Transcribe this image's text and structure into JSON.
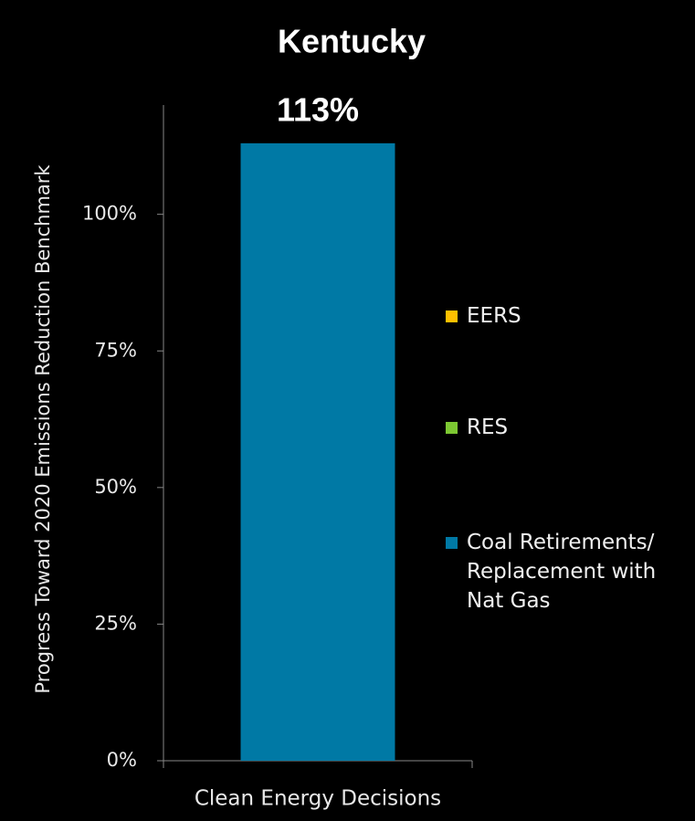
{
  "chart_data": {
    "type": "stacked_bar",
    "title": "Kentucky",
    "y_label": "Progress Toward 2020 Emissions Reduction Benchmark",
    "categories": [
      "Clean Energy Decisions"
    ],
    "series": [
      {
        "name": "Coal Retirements/ Replacement with Nat Gas",
        "color": "#0079a5",
        "values": [
          113
        ],
        "value_labels": [
          "113%"
        ]
      },
      {
        "name": "RES",
        "color": "#7dc832",
        "values": [
          0
        ]
      },
      {
        "name": "EERS",
        "color": "#ffc000",
        "values": [
          0
        ]
      }
    ],
    "ylim": [
      0,
      120
    ],
    "yticks": [
      {
        "value": 0,
        "label": "0%"
      },
      {
        "value": 25,
        "label": "25%"
      },
      {
        "value": 50,
        "label": "50%"
      },
      {
        "value": 75,
        "label": "75%"
      },
      {
        "value": 100,
        "label": "100%"
      }
    ],
    "legend": "right"
  }
}
